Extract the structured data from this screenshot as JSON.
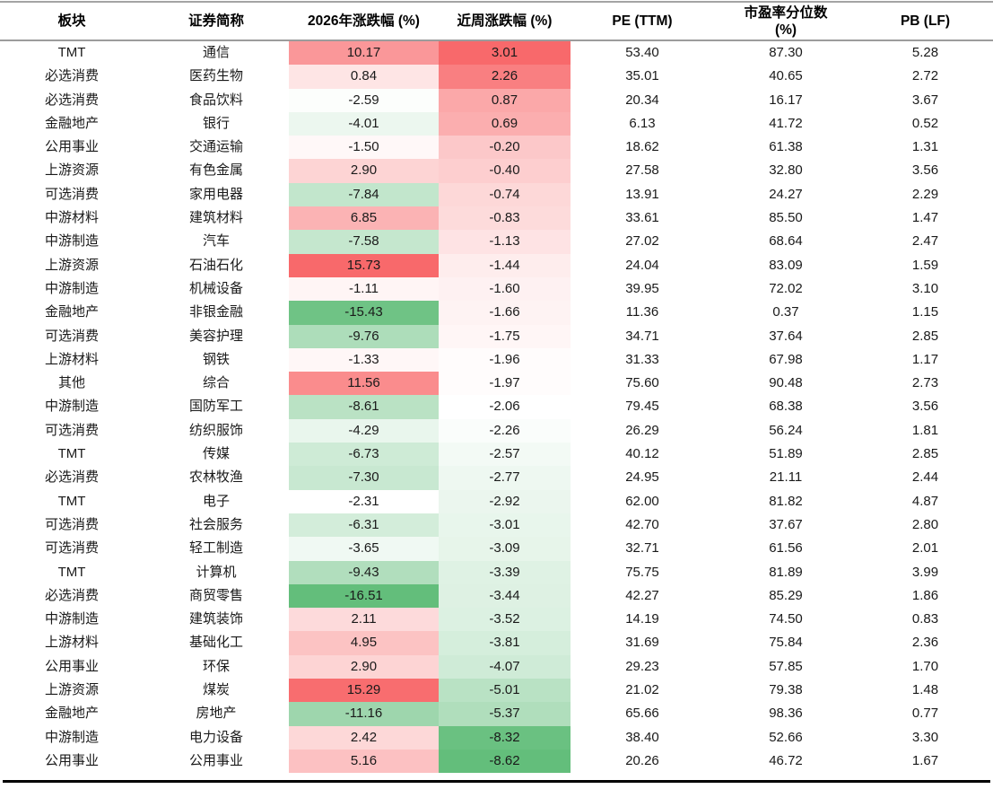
{
  "table": {
    "columns": [
      {
        "key": "sector",
        "label": "板块",
        "label2": ""
      },
      {
        "key": "name",
        "label": "证券简称",
        "label2": ""
      },
      {
        "key": "ytd",
        "label": "2026年涨跌幅 (%)",
        "label2": ""
      },
      {
        "key": "week",
        "label": "近周涨跌幅 (%)",
        "label2": ""
      },
      {
        "key": "pe",
        "label": "PE (TTM)",
        "label2": ""
      },
      {
        "key": "pe_pct",
        "label": "市盈率分位数",
        "label2": "(%)"
      },
      {
        "key": "pb",
        "label": "PB (LF)",
        "label2": ""
      }
    ]
  },
  "chart_data": {
    "type": "table",
    "title": "",
    "columns": [
      "板块",
      "证券简称",
      "2026年涨跌幅 (%)",
      "近周涨跌幅 (%)",
      "PE (TTM)",
      "市盈率分位数 (%)",
      "PB (LF)"
    ],
    "heatmap_column_indexes": [
      2,
      3
    ],
    "color_scale": {
      "max_color": "#F8696B",
      "mid_color": "#FFFFFF",
      "min_color": "#63BE7B",
      "midpoint": "median"
    },
    "rows": [
      [
        "TMT",
        "通信",
        10.17,
        3.01,
        53.4,
        87.3,
        5.28
      ],
      [
        "必选消费",
        "医药生物",
        0.84,
        2.26,
        35.01,
        40.65,
        2.72
      ],
      [
        "必选消费",
        "食品饮料",
        -2.59,
        0.87,
        20.34,
        16.17,
        3.67
      ],
      [
        "金融地产",
        "银行",
        -4.01,
        0.69,
        6.13,
        41.72,
        0.52
      ],
      [
        "公用事业",
        "交通运输",
        -1.5,
        -0.2,
        18.62,
        61.38,
        1.31
      ],
      [
        "上游资源",
        "有色金属",
        2.9,
        -0.4,
        27.58,
        32.8,
        3.56
      ],
      [
        "可选消费",
        "家用电器",
        -7.84,
        -0.74,
        13.91,
        24.27,
        2.29
      ],
      [
        "中游材料",
        "建筑材料",
        6.85,
        -0.83,
        33.61,
        85.5,
        1.47
      ],
      [
        "中游制造",
        "汽车",
        -7.58,
        -1.13,
        27.02,
        68.64,
        2.47
      ],
      [
        "上游资源",
        "石油石化",
        15.73,
        -1.44,
        24.04,
        83.09,
        1.59
      ],
      [
        "中游制造",
        "机械设备",
        -1.11,
        -1.6,
        39.95,
        72.02,
        3.1
      ],
      [
        "金融地产",
        "非银金融",
        -15.43,
        -1.66,
        11.36,
        0.37,
        1.15
      ],
      [
        "可选消费",
        "美容护理",
        -9.76,
        -1.75,
        34.71,
        37.64,
        2.85
      ],
      [
        "上游材料",
        "钢铁",
        -1.33,
        -1.96,
        31.33,
        67.98,
        1.17
      ],
      [
        "其他",
        "综合",
        11.56,
        -1.97,
        75.6,
        90.48,
        2.73
      ],
      [
        "中游制造",
        "国防军工",
        -8.61,
        -2.06,
        79.45,
        68.38,
        3.56
      ],
      [
        "可选消费",
        "纺织服饰",
        -4.29,
        -2.26,
        26.29,
        56.24,
        1.81
      ],
      [
        "TMT",
        "传媒",
        -6.73,
        -2.57,
        40.12,
        51.89,
        2.85
      ],
      [
        "必选消费",
        "农林牧渔",
        -7.3,
        -2.77,
        24.95,
        21.11,
        2.44
      ],
      [
        "TMT",
        "电子",
        -2.31,
        -2.92,
        62.0,
        81.82,
        4.87
      ],
      [
        "可选消费",
        "社会服务",
        -6.31,
        -3.01,
        42.7,
        37.67,
        2.8
      ],
      [
        "可选消费",
        "轻工制造",
        -3.65,
        -3.09,
        32.71,
        61.56,
        2.01
      ],
      [
        "TMT",
        "计算机",
        -9.43,
        -3.39,
        75.75,
        81.89,
        3.99
      ],
      [
        "必选消费",
        "商贸零售",
        -16.51,
        -3.44,
        42.27,
        85.29,
        1.86
      ],
      [
        "中游制造",
        "建筑装饰",
        2.11,
        -3.52,
        14.19,
        74.5,
        0.83
      ],
      [
        "上游材料",
        "基础化工",
        4.95,
        -3.81,
        31.69,
        75.84,
        2.36
      ],
      [
        "公用事业",
        "环保",
        2.9,
        -4.07,
        29.23,
        57.85,
        1.7
      ],
      [
        "上游资源",
        "煤炭",
        15.29,
        -5.01,
        21.02,
        79.38,
        1.48
      ],
      [
        "金融地产",
        "房地产",
        -11.16,
        -5.37,
        65.66,
        98.36,
        0.77
      ],
      [
        "中游制造",
        "电力设备",
        2.42,
        -8.32,
        38.4,
        52.66,
        3.3
      ],
      [
        "公用事业",
        "公用事业",
        5.16,
        -8.62,
        20.26,
        46.72,
        1.67
      ]
    ]
  }
}
